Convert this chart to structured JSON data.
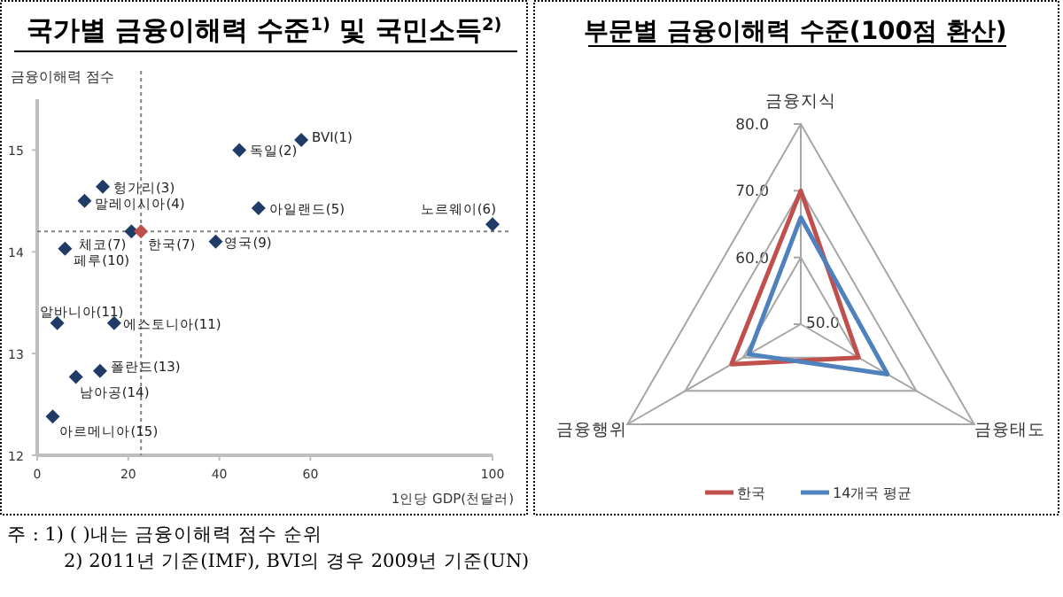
{
  "chart_data": [
    {
      "type": "scatter",
      "title": "국가별 금융이해력 수준$^{1)}$ 및 국민소득$^{2)}$",
      "ylabel": "금융이해력 점수",
      "xlabel": "1인당 GDP(천달러)",
      "x": [
        58,
        44.4,
        14.4,
        10.4,
        48.6,
        100,
        20.7,
        22.8,
        39.2,
        6.1,
        4.4,
        16.9,
        13.8,
        8.5,
        3.4
      ],
      "values": [
        15.1,
        15.0,
        14.64,
        14.5,
        14.43,
        14.27,
        14.2,
        14.2,
        14.1,
        14.03,
        13.3,
        13.3,
        12.83,
        12.77,
        12.38
      ],
      "colors": [
        "#1f3b66",
        "#1f3b66",
        "#1f3b66",
        "#1f3b66",
        "#1f3b66",
        "#1f3b66",
        "#1f3b66",
        "#c0504d",
        "#1f3b66",
        "#1f3b66",
        "#1f3b66",
        "#1f3b66",
        "#1f3b66",
        "#1f3b66",
        "#1f3b66"
      ],
      "marker": "diamond",
      "xlim": [
        0,
        100
      ],
      "xticks": [
        0,
        20,
        40,
        60,
        100
      ],
      "ylim": [
        12,
        15.5
      ],
      "yticks": [
        12,
        13,
        14,
        15
      ],
      "ref_lines": [
        {
          "axis": "y",
          "value": 14.2,
          "color": "#808080",
          "line_style": "dotted"
        },
        {
          "axis": "x",
          "value": 22.8,
          "color": "#808080",
          "line_style": "dotted"
        }
      ],
      "annotations": [
        {
          "text": "BVI(1)",
          "x": 58,
          "y": 15.1
        },
        {
          "text": "독일(2)",
          "x": 44.4,
          "y": 15.0
        },
        {
          "text": "헝가리(3)",
          "x": 14.4,
          "y": 14.64
        },
        {
          "text": "말레이시아(4)",
          "x": 10.4,
          "y": 14.5
        },
        {
          "text": "아일랜드(5)",
          "x": 48.6,
          "y": 14.43
        },
        {
          "text": "노르웨이(6)",
          "x": 100,
          "y": 14.27
        },
        {
          "text": "체코(7)",
          "x": 20.7,
          "y": 14.2
        },
        {
          "text": "한국(7)",
          "x": 22.8,
          "y": 14.2
        },
        {
          "text": "영국(9)",
          "x": 39.2,
          "y": 14.1
        },
        {
          "text": "페루(10)",
          "x": 6.1,
          "y": 14.03
        },
        {
          "text": "알바니아(11)",
          "x": 4.4,
          "y": 13.3
        },
        {
          "text": "에스토니아(11)",
          "x": 16.9,
          "y": 13.3
        },
        {
          "text": "폴란드(13)",
          "x": 13.8,
          "y": 12.83
        },
        {
          "text": "남아공(14)",
          "x": 8.5,
          "y": 12.77
        },
        {
          "text": "아르메니아(15)",
          "x": 3.4,
          "y": 12.38
        },
        "주 : 1) (   )내는 금융이해력 점수 순위",
        "2) 2011년 기준(IMF), BVI의 경우 2009년 기준(UN)"
      ]
    },
    {
      "type": "radar",
      "title": "부문별 금융이해력 수준(100점 환산)",
      "categories": [
        "금융지식",
        "금융태도",
        "금융행위"
      ],
      "ylim": [
        50,
        80
      ],
      "yticks": [
        {
          "value": 50,
          "label": "50.0"
        },
        {
          "value": 60,
          "label": "60.0"
        },
        {
          "value": 70,
          "label": "70.0"
        },
        {
          "value": 80,
          "label": "80.0"
        }
      ],
      "legend": "bottom",
      "series": [
        {
          "name": "한국",
          "color": "#c0504d",
          "values": [
            70,
            60,
            62
          ]
        },
        {
          "name": "14개국 평균",
          "color": "#4f81bd",
          "values": [
            66,
            65,
            59
          ]
        }
      ]
    }
  ]
}
